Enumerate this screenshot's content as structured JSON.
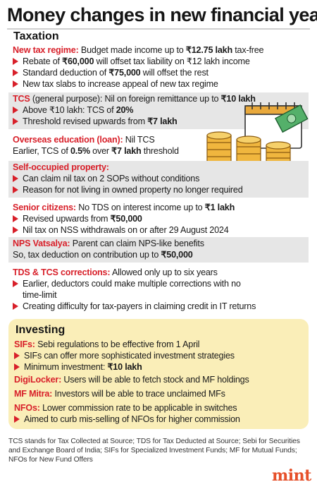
{
  "title": "Money changes in new financial year",
  "taxation": {
    "heading": "Taxation",
    "new_regime": {
      "label": "New tax regime:",
      "text": " Budget made income up to ",
      "amount": "₹12.75 lakh",
      "text2": " tax-free",
      "bullets": [
        {
          "pre": "Rebate of ",
          "b": "₹60,000",
          "post": " will offset tax liability on ₹12 lakh income"
        },
        {
          "pre": "Standard deduction of ",
          "b": "₹75,000",
          "post": " will offset the rest"
        },
        {
          "pre": "New tax slabs to increase appeal of new tax regime",
          "b": "",
          "post": ""
        }
      ]
    },
    "tcs": {
      "label": "TCS",
      "text": " (general purpose): Nil on foreign remittance up to ",
      "amount": "₹10 lakh",
      "bullets": [
        {
          "pre": "Above ₹10 lakh: TCS of ",
          "b": "20%",
          "post": ""
        },
        {
          "pre": "Threshold revised upwards from ",
          "b": "₹7 lakh",
          "post": ""
        }
      ]
    },
    "overseas": {
      "label": "Overseas education (loan):",
      "text": " Nil TCS",
      "line2_pre": "Earlier, TCS of ",
      "line2_b1": "0.5%",
      "line2_mid": " over ",
      "line2_b2": "₹7 lakh",
      "line2_post": " threshold"
    },
    "sop": {
      "label": "Self-occupied property:",
      "bullets": [
        {
          "pre": "Can claim nil tax on 2 SOPs without conditions",
          "b": "",
          "post": ""
        },
        {
          "pre": "Reason for not living in owned property no longer required",
          "b": "",
          "post": ""
        }
      ]
    },
    "senior": {
      "label": "Senior citizens:",
      "text": " No TDS on interest income up to ",
      "amount": "₹1 lakh",
      "bullets": [
        {
          "pre": "Revised upwards from ",
          "b": "₹50,000",
          "post": ""
        },
        {
          "pre": "Nil tax on NSS withdrawals on or after 29 August 2024",
          "b": "",
          "post": ""
        }
      ]
    },
    "nps": {
      "label": "NPS Vatsalya:",
      "text": " Parent can claim NPS-like benefits",
      "line2_pre": "So, tax deduction on contribution up to ",
      "line2_b": "₹50,000"
    },
    "tds": {
      "label": "TDS & TCS corrections:",
      "text": " Allowed only up to six years",
      "bullet1": "Earlier, deductors could make multiple corrections with no",
      "bullet1_cont": "time-limit",
      "bullet2": "Creating difficulty for tax-payers in claiming credit in IT returns"
    }
  },
  "investing": {
    "heading": "Investing",
    "sifs": {
      "label": "SIFs:",
      "text": " Sebi regulations to be effective from 1 April",
      "bullets": [
        {
          "pre": "SIFs can offer more sophisticated investment strategies",
          "b": "",
          "post": ""
        },
        {
          "pre": "Minimum investment: ",
          "b": "₹10 lakh",
          "post": ""
        }
      ]
    },
    "digilocker": {
      "label": "DigiLocker:",
      "text": " Users will be able to fetch stock and MF holdings"
    },
    "mfmitra": {
      "label": "MF Mitra:",
      "text": " Investors will be able to trace unclaimed MFs"
    },
    "nfos": {
      "label": "NFOs:",
      "text": " Lower commission rate to be applicable in switches",
      "bullet": "Aimed to curb mis-selling of NFOs for higher commission"
    }
  },
  "footnote": "TCS stands for Tax Collected at Source; TDS for Tax Deducted at Source; Sebi for Securities and Exchange Board of India; SIFs for Specialized Investment Funds; MF for Mutual Funds; NFOs for New Fund Offers",
  "brand": "mint",
  "colors": {
    "accent": "#d8202a",
    "panel": "#e6e6e6",
    "investing_bg": "#faeeb8",
    "brand": "#e6502a"
  }
}
